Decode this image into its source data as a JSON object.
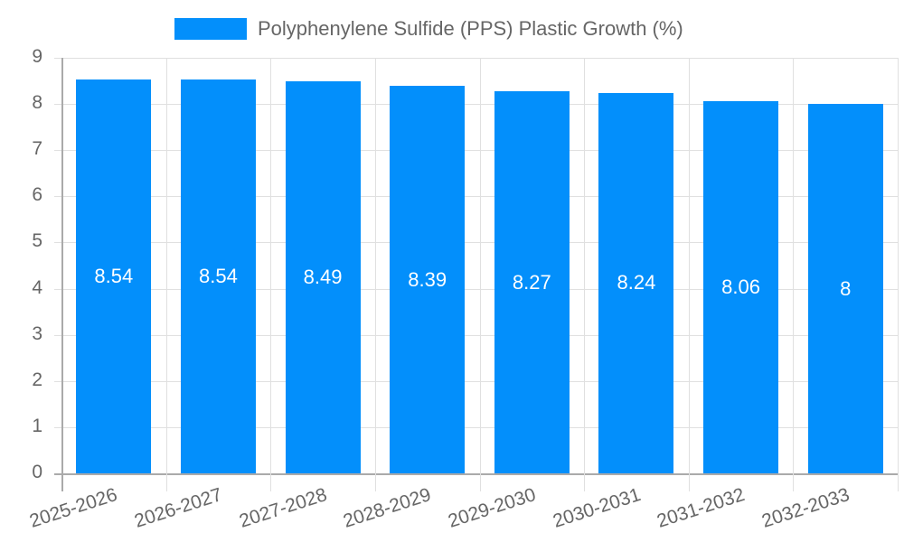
{
  "chart_data": {
    "type": "bar",
    "title": "",
    "xlabel": "",
    "ylabel": "",
    "legend": {
      "position": "top",
      "entries": [
        "Polyphenylene Sulfide (PPS) Plastic Growth (%)"
      ]
    },
    "categories": [
      "2025-2026",
      "2026-2027",
      "2027-2028",
      "2028-2029",
      "2029-2030",
      "2030-2031",
      "2031-2032",
      "2032-2033"
    ],
    "series": [
      {
        "name": "Polyphenylene Sulfide (PPS) Plastic Growth (%)",
        "color": "#038ffb",
        "values": [
          8.54,
          8.54,
          8.49,
          8.39,
          8.27,
          8.24,
          8.06,
          8
        ]
      }
    ],
    "data_labels": [
      "8.54",
      "8.54",
      "8.49",
      "8.39",
      "8.27",
      "8.24",
      "8.06",
      "8"
    ],
    "ylim": [
      0,
      9
    ],
    "yticks": [
      "0",
      "1",
      "2",
      "3",
      "4",
      "5",
      "6",
      "7",
      "8",
      "9"
    ],
    "grid": true
  },
  "legend": {
    "label": "Polyphenylene Sulfide (PPS) Plastic Growth (%)",
    "color": "#038ffb"
  }
}
